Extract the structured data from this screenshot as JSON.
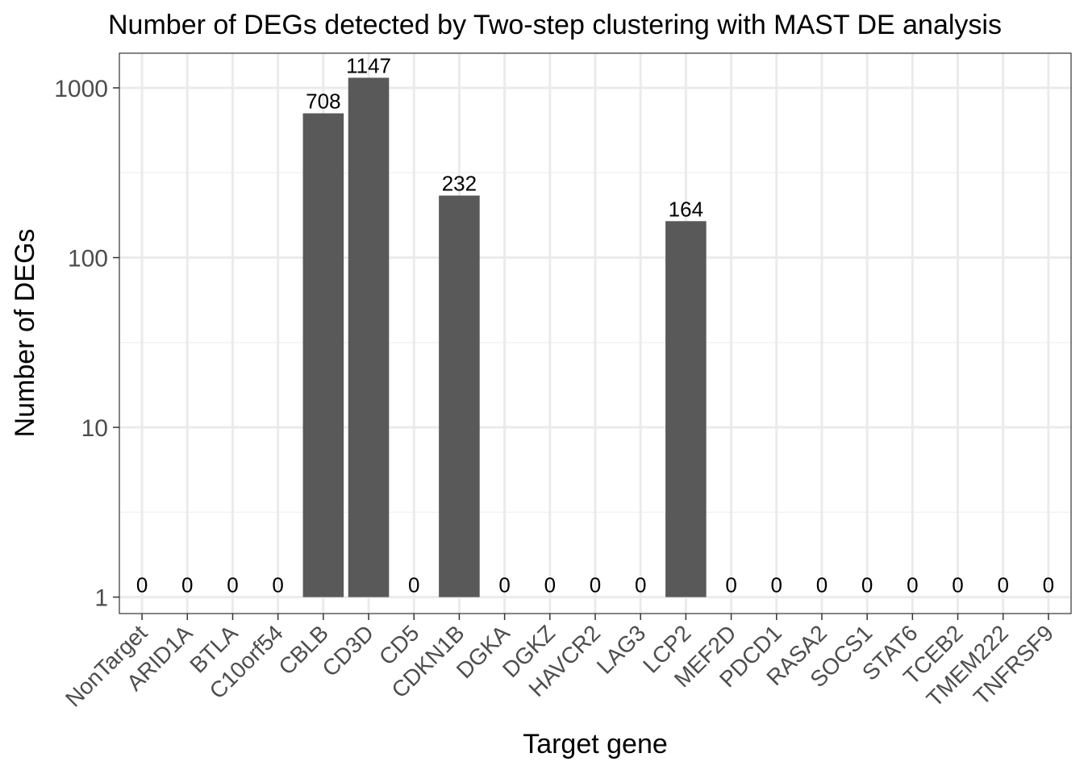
{
  "chart_data": {
    "type": "bar",
    "title": "Number of DEGs detected by Two-step clustering with MAST DE analysis",
    "xlabel": "Target gene",
    "ylabel": "Number of DEGs",
    "yscale": "log10",
    "ylim": [
      0.8,
      1600
    ],
    "yticks": [
      1,
      10,
      100,
      1000
    ],
    "ytick_labels": [
      "1",
      "10",
      "100",
      "1000"
    ],
    "grid": true,
    "categories": [
      "NonTarget",
      "ARID1A",
      "BTLA",
      "C10orf54",
      "CBLB",
      "CD3D",
      "CD5",
      "CDKN1B",
      "DGKA",
      "DGKZ",
      "HAVCR2",
      "LAG3",
      "LCP2",
      "MEF2D",
      "PDCD1",
      "RASA2",
      "SOCS1",
      "STAT6",
      "TCEB2",
      "TMEM222",
      "TNFRSF9"
    ],
    "values": [
      0,
      0,
      0,
      0,
      708,
      1147,
      0,
      232,
      0,
      0,
      0,
      0,
      164,
      0,
      0,
      0,
      0,
      0,
      0,
      0,
      0
    ],
    "bar_color": "#595959"
  }
}
